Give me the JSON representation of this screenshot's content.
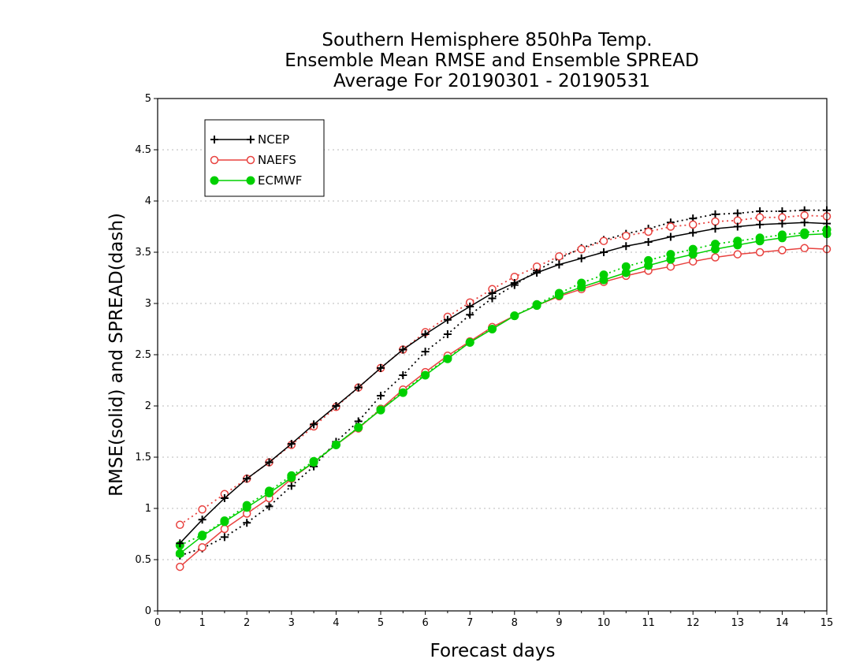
{
  "chart_data": {
    "type": "line",
    "title": [
      "Southern Hemisphere 850hPa Temp.",
      "Ensemble Mean RMSE and Ensemble SPREAD",
      "Average For 20190301 - 20190531"
    ],
    "xlabel": "Forecast days",
    "ylabel": "RMSE(solid) and SPREAD(dash)",
    "xlim": [
      0,
      15
    ],
    "ylim": [
      0,
      5
    ],
    "xticks": [
      0,
      1,
      2,
      3,
      4,
      5,
      6,
      7,
      8,
      9,
      10,
      11,
      12,
      13,
      14,
      15
    ],
    "yticks": [
      0,
      0.5,
      1,
      1.5,
      2,
      2.5,
      3,
      3.5,
      4,
      4.5,
      5
    ],
    "grid": "horizontal dotted",
    "legend_position": "top-left",
    "x": [
      0.5,
      1,
      1.5,
      2,
      2.5,
      3,
      3.5,
      4,
      4.5,
      5,
      5.5,
      6,
      6.5,
      7,
      7.5,
      8,
      8.5,
      9,
      9.5,
      10,
      10.5,
      11,
      11.5,
      12,
      12.5,
      13,
      13.5,
      14,
      14.5,
      15
    ],
    "series": [
      {
        "name": "NCEP",
        "kind": "rmse",
        "style": "solid",
        "marker": "plus",
        "color": "#000000",
        "values": [
          0.66,
          0.89,
          1.1,
          1.29,
          1.45,
          1.63,
          1.82,
          2.0,
          2.18,
          2.37,
          2.55,
          2.7,
          2.84,
          2.97,
          3.1,
          3.2,
          3.3,
          3.38,
          3.44,
          3.5,
          3.56,
          3.6,
          3.65,
          3.69,
          3.73,
          3.75,
          3.77,
          3.78,
          3.79,
          3.78
        ]
      },
      {
        "name": "NCEP",
        "kind": "spread",
        "style": "dotted",
        "marker": "plus",
        "color": "#000000",
        "values": [
          0.54,
          0.61,
          0.72,
          0.86,
          1.02,
          1.22,
          1.41,
          1.65,
          1.85,
          2.1,
          2.3,
          2.53,
          2.7,
          2.89,
          3.05,
          3.18,
          3.32,
          3.44,
          3.54,
          3.62,
          3.68,
          3.73,
          3.79,
          3.83,
          3.87,
          3.88,
          3.9,
          3.9,
          3.91,
          3.91
        ]
      },
      {
        "name": "NAEFS",
        "kind": "rmse",
        "style": "solid",
        "marker": "circle",
        "color": "#e8423f",
        "values": [
          0.43,
          0.62,
          0.8,
          0.95,
          1.1,
          1.29,
          1.45,
          1.62,
          1.78,
          1.97,
          2.16,
          2.33,
          2.49,
          2.63,
          2.77,
          2.88,
          2.98,
          3.07,
          3.14,
          3.21,
          3.27,
          3.32,
          3.36,
          3.41,
          3.45,
          3.48,
          3.5,
          3.52,
          3.54,
          3.53
        ]
      },
      {
        "name": "NAEFS",
        "kind": "spread",
        "style": "dotted",
        "marker": "circle",
        "color": "#e8423f",
        "values": [
          0.84,
          0.99,
          1.14,
          1.29,
          1.45,
          1.62,
          1.8,
          1.99,
          2.18,
          2.37,
          2.55,
          2.72,
          2.87,
          3.01,
          3.14,
          3.26,
          3.36,
          3.46,
          3.53,
          3.61,
          3.66,
          3.7,
          3.75,
          3.77,
          3.8,
          3.81,
          3.84,
          3.84,
          3.86,
          3.85
        ]
      },
      {
        "name": "ECMWF",
        "kind": "rmse",
        "style": "solid",
        "marker": "dot",
        "color": "#00d000",
        "values": [
          0.56,
          0.73,
          0.87,
          1.01,
          1.15,
          1.3,
          1.45,
          1.62,
          1.79,
          1.96,
          2.13,
          2.3,
          2.46,
          2.62,
          2.75,
          2.88,
          2.98,
          3.08,
          3.16,
          3.23,
          3.3,
          3.37,
          3.43,
          3.48,
          3.53,
          3.57,
          3.61,
          3.64,
          3.67,
          3.68
        ]
      },
      {
        "name": "ECMWF",
        "kind": "spread",
        "style": "dotted",
        "marker": "dot",
        "color": "#00d000",
        "values": [
          0.64,
          0.74,
          0.88,
          1.03,
          1.17,
          1.32,
          1.46,
          1.62,
          1.79,
          1.97,
          2.14,
          2.31,
          2.47,
          2.62,
          2.76,
          2.88,
          2.99,
          3.1,
          3.2,
          3.28,
          3.36,
          3.42,
          3.48,
          3.53,
          3.58,
          3.61,
          3.64,
          3.67,
          3.69,
          3.72
        ]
      }
    ],
    "legend": [
      {
        "name": "NCEP",
        "marker": "plus",
        "color": "#000000"
      },
      {
        "name": "NAEFS",
        "marker": "circle",
        "color": "#e8423f"
      },
      {
        "name": "ECMWF",
        "marker": "dot",
        "color": "#00d000"
      }
    ]
  }
}
